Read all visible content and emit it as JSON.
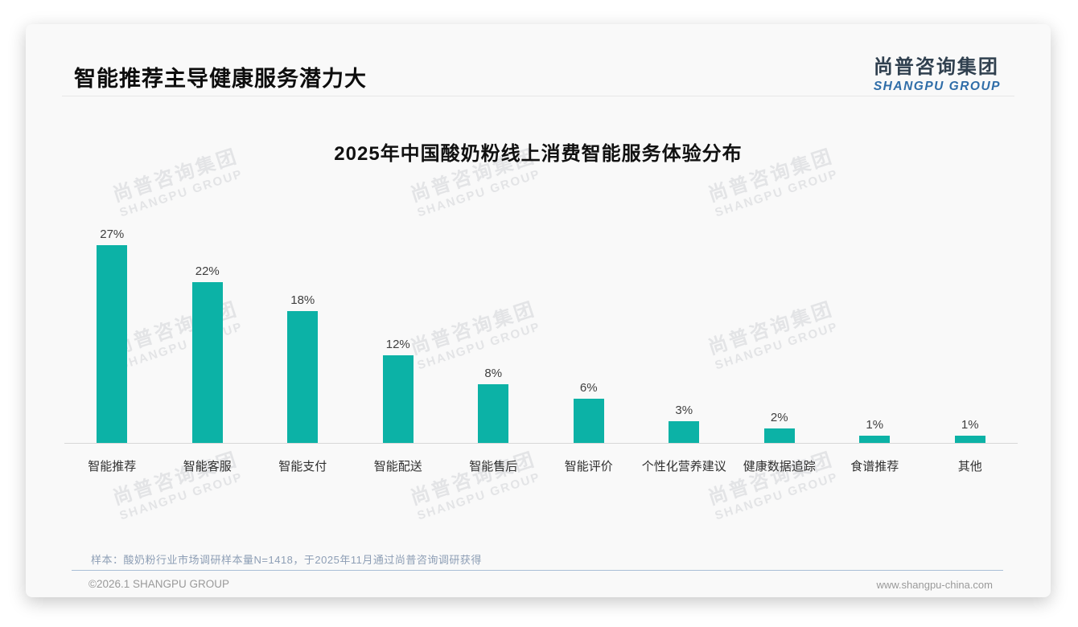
{
  "header": {
    "title": "智能推荐主导健康服务潜力大",
    "logo_cn": "尚普咨询集团",
    "logo_en": "SHANGPU GROUP"
  },
  "watermark": {
    "line1": "尚普咨询集团",
    "line2": "SHANGPU GROUP"
  },
  "chart_data": {
    "type": "bar",
    "title": "2025年中国酸奶粉线上消费智能服务体验分布",
    "categories": [
      "智能推荐",
      "智能客服",
      "智能支付",
      "智能配送",
      "智能售后",
      "智能评价",
      "个性化营养建议",
      "健康数据追踪",
      "食谱推荐",
      "其他"
    ],
    "values": [
      27,
      22,
      18,
      12,
      8,
      6,
      3,
      2,
      1,
      1
    ],
    "value_labels": [
      "27%",
      "22%",
      "18%",
      "12%",
      "8%",
      "6%",
      "3%",
      "2%",
      "1%",
      "1%"
    ],
    "unit": "%",
    "bar_color": "#0CB2A6",
    "xlabel": "",
    "ylabel": "",
    "ylim": [
      0,
      30
    ],
    "grid": false,
    "legend": false
  },
  "footnote": {
    "sample": "样本：酸奶粉行业市场调研样本量N=1418，于2025年11月通过尚普咨询调研获得"
  },
  "footer": {
    "copyright": "©2026.1 SHANGPU GROUP",
    "website": "www.shangpu-china.com"
  }
}
